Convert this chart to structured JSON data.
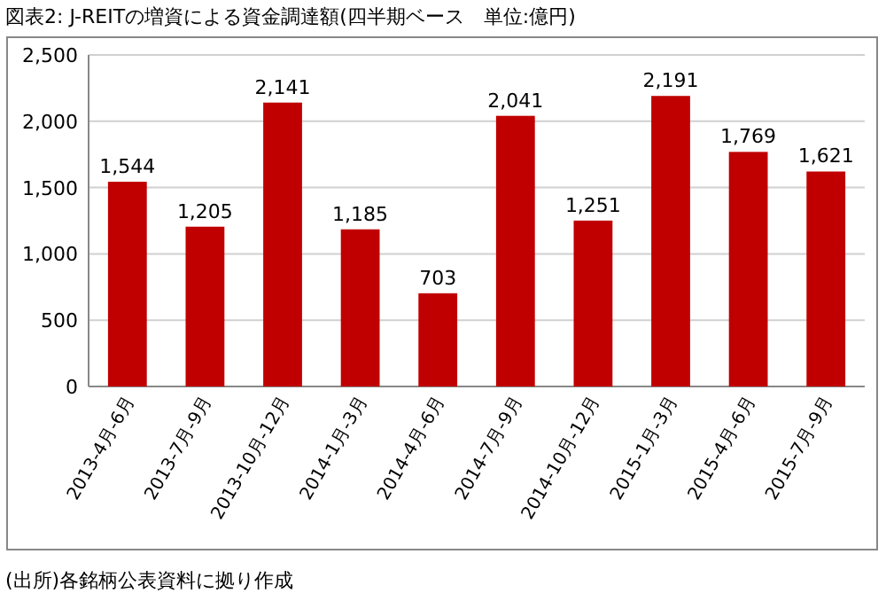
{
  "chart_data": {
    "type": "bar",
    "title": "図表2: J-REITの増資による資金調達額(四半期ベース　単位:億円)",
    "categories": [
      "2013-4月-6月",
      "2013-7月-9月",
      "2013-10月-12月",
      "2014-1月-3月",
      "2014-4月-6月",
      "2014-7月-9月",
      "2014-10月-12月",
      "2015-1月-3月",
      "2015-4月-6月",
      "2015-7月-9月"
    ],
    "values": [
      1544,
      1205,
      2141,
      1185,
      703,
      2041,
      1251,
      2191,
      1769,
      1621
    ],
    "color": "#c00000",
    "ylim": [
      0,
      2500
    ],
    "yticks": [
      {
        "value": 0,
        "label": "0"
      },
      {
        "value": 500,
        "label": "500"
      },
      {
        "value": 1000,
        "label": "1,000"
      },
      {
        "value": 1500,
        "label": "1,500"
      },
      {
        "value": 2000,
        "label": "2,000"
      },
      {
        "value": 2500,
        "label": "2,500"
      }
    ],
    "value_labels": [
      "1,544",
      "1,205",
      "2,141",
      "1,185",
      "703",
      "2,041",
      "1,251",
      "2,191",
      "1,769",
      "1,621"
    ],
    "grid": "y",
    "annotations": [
      "(出所)各銘柄公表資料に拠り作成"
    ]
  }
}
